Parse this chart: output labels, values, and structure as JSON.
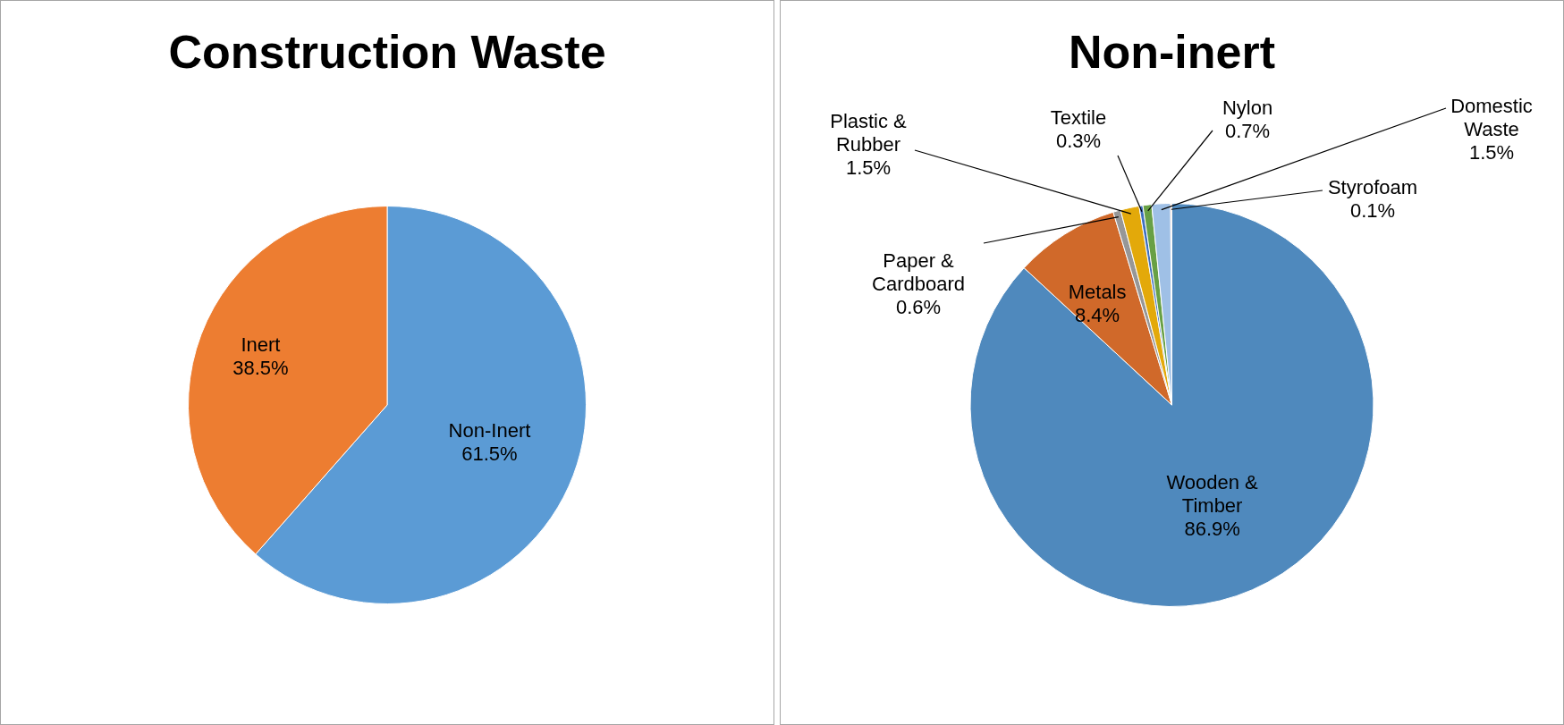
{
  "chart_data": [
    {
      "type": "pie",
      "title": "Construction Waste",
      "categories": [
        "Non-Inert",
        "Inert"
      ],
      "values": [
        61.5,
        38.5
      ],
      "colors": [
        "#5b9bd5",
        "#ed7d31"
      ],
      "value_labels": [
        "61.5%",
        "38.5%"
      ]
    },
    {
      "type": "pie",
      "title": "Non-inert",
      "categories": [
        "Wooden & Timber",
        "Metals",
        "Paper & Cardboard",
        "Plastic & Rubber",
        "Textile",
        "Nylon",
        "Domestic Waste",
        "Styrofoam"
      ],
      "values": [
        86.9,
        8.4,
        0.6,
        1.5,
        0.3,
        0.7,
        1.5,
        0.1
      ],
      "colors": [
        "#4f89bd",
        "#d0692a",
        "#979797",
        "#e3a90a",
        "#3f6fbf",
        "#68a045",
        "#9fc0e6",
        "#f0b9a0"
      ],
      "value_labels": [
        "86.9%",
        "8.4%",
        "0.6%",
        "1.5%",
        "0.3%",
        "0.7%",
        "1.5%",
        "0.1%"
      ]
    }
  ]
}
